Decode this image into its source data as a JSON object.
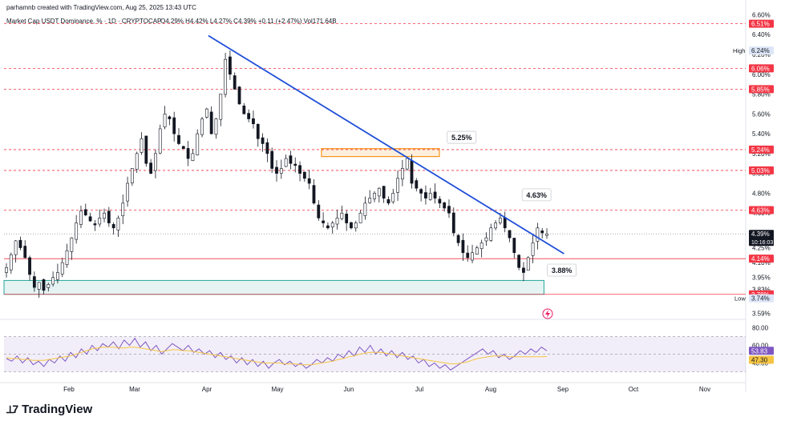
{
  "header": {
    "creator": "parhamnb created with TradingView.com, Aug 25, 2025 13:43 UTC",
    "symbol": "Market Cap USDT Dominance, % · 1D · CRYPTOCAP",
    "ohlc": "O4.29% H4.42% L4.27% C4.39% +0.11 (+2.47%) Vol171.64B"
  },
  "brand": {
    "name": "TradingView"
  },
  "colors": {
    "bull": "#ffffff",
    "bear": "#131722",
    "trend": "#1f4fd8",
    "red_level": "#f23645",
    "green_zone": "#26a69a",
    "orange_zone": "#f7931a",
    "rsi_line": "#7e57c2",
    "rsi_ma": "#f5c542"
  },
  "chart_data": [
    {
      "type": "candlestick",
      "x_ticks": [
        "Feb",
        "Mar",
        "Apr",
        "May",
        "Jun",
        "Jul",
        "Aug",
        "Sep",
        "Oct",
        "Nov"
      ],
      "y_ticks": [
        "6.60%",
        "6.40%",
        "6.20%",
        "6.00%",
        "5.80%",
        "5.60%",
        "5.40%",
        "5.20%",
        "5.00%",
        "4.80%",
        "4.60%",
        "4.40%",
        "4.25%",
        "4.10%",
        "3.95%",
        "3.83%",
        "3.74%",
        "3.59%"
      ],
      "ylim": [
        3.56,
        6.62
      ],
      "price_labels": [
        {
          "text": "6.51%",
          "value": 6.51,
          "kind": "red"
        },
        {
          "text": "6.24%",
          "value": 6.24,
          "kind": "high"
        },
        {
          "text": "6.06%",
          "value": 6.06,
          "kind": "red"
        },
        {
          "text": "5.85%",
          "value": 5.85,
          "kind": "red"
        },
        {
          "text": "5.24%",
          "value": 5.24,
          "kind": "red"
        },
        {
          "text": "5.03%",
          "value": 5.03,
          "kind": "red"
        },
        {
          "text": "4.63%",
          "value": 4.63,
          "kind": "red"
        },
        {
          "text": "4.39%",
          "value": 4.39,
          "kind": "current"
        },
        {
          "text": "4.14%",
          "value": 4.14,
          "kind": "red"
        },
        {
          "text": "3.78%",
          "value": 3.78,
          "kind": "red"
        }
      ],
      "current_sub": "10:16:03",
      "high_label": "High",
      "low_label": "Low",
      "low_value": 3.74,
      "dashed_levels": [
        6.51,
        6.06,
        5.85,
        5.24,
        5.03,
        4.63
      ],
      "solid_levels": [
        4.14,
        3.78
      ],
      "current_level": 4.39,
      "trendline": {
        "from": [
          0.2755,
          6.39
        ],
        "to": [
          0.755,
          4.19
        ]
      },
      "green_zone": {
        "x": [
          0.0,
          0.728
        ],
        "y": [
          3.78,
          3.92
        ]
      },
      "orange_zone": {
        "x": [
          0.428,
          0.587
        ],
        "y": [
          5.17,
          5.25
        ]
      },
      "callouts": [
        {
          "text": "5.25%",
          "x": 0.617,
          "y": 5.36
        },
        {
          "text": "4.63%",
          "x": 0.718,
          "y": 4.78
        },
        {
          "text": "3.88%",
          "x": 0.752,
          "y": 4.02
        }
      ],
      "series_close": [
        4.05,
        4.18,
        4.32,
        4.25,
        4.15,
        3.98,
        3.85,
        3.9,
        3.82,
        3.88,
        3.95,
        4.0,
        4.1,
        4.22,
        4.35,
        4.5,
        4.62,
        4.58,
        4.52,
        4.48,
        4.55,
        4.6,
        4.5,
        4.45,
        4.55,
        4.7,
        4.9,
        5.05,
        5.2,
        5.35,
        5.1,
        5.0,
        5.2,
        5.45,
        5.6,
        5.55,
        5.4,
        5.3,
        5.25,
        5.15,
        5.2,
        5.4,
        5.55,
        5.65,
        5.4,
        5.55,
        5.8,
        6.15,
        6.0,
        5.85,
        5.7,
        5.6,
        5.55,
        5.5,
        5.35,
        5.3,
        5.2,
        5.05,
        5.0,
        5.05,
        5.15,
        5.1,
        5.08,
        5.0,
        4.95,
        4.9,
        4.7,
        4.55,
        4.5,
        4.45,
        4.5,
        4.55,
        4.6,
        4.5,
        4.45,
        4.5,
        4.6,
        4.7,
        4.75,
        4.8,
        4.85,
        4.75,
        4.7,
        4.8,
        4.95,
        5.05,
        5.15,
        4.9,
        4.85,
        4.8,
        4.75,
        4.8,
        4.75,
        4.7,
        4.65,
        4.6,
        4.4,
        4.3,
        4.2,
        4.15,
        4.2,
        4.25,
        4.3,
        4.35,
        4.45,
        4.5,
        4.55,
        4.45,
        4.35,
        4.2,
        4.05,
        4.0,
        4.15,
        4.3,
        4.45,
        4.4,
        4.39
      ],
      "rsi": {
        "ticks": [
          "80.00",
          "60.00",
          "40.00"
        ],
        "ylim": [
          25,
          85
        ],
        "levels": [
          70,
          50,
          30
        ],
        "value_label": "53.83",
        "ma_label": "47.30",
        "line": [
          45,
          42,
          48,
          40,
          46,
          38,
          42,
          36,
          44,
          40,
          48,
          42,
          52,
          46,
          56,
          50,
          60,
          54,
          62,
          58,
          64,
          56,
          66,
          60,
          68,
          58,
          64,
          54,
          60,
          50,
          56,
          62,
          58,
          54,
          60,
          52,
          56,
          50,
          54,
          46,
          52,
          44,
          48,
          40,
          46,
          38,
          44,
          36,
          42,
          34,
          40,
          44,
          38,
          42,
          36,
          40,
          34,
          38,
          44,
          40,
          46,
          42,
          50,
          46,
          54,
          48,
          58,
          52,
          60,
          50,
          56,
          48,
          54,
          46,
          52,
          44,
          48,
          40,
          44,
          36,
          40,
          34,
          38,
          32,
          36,
          40,
          44,
          48,
          52,
          56,
          50,
          54,
          46,
          50,
          44,
          48,
          54,
          50,
          56,
          52,
          58,
          53.83
        ],
        "ma": [
          46,
          45,
          45,
          44,
          44,
          43,
          43,
          43,
          44,
          45,
          46,
          47,
          48,
          50,
          52,
          54,
          56,
          57,
          58,
          58,
          58,
          57,
          57,
          58,
          58,
          57,
          56,
          55,
          54,
          53,
          54,
          55,
          55,
          54,
          54,
          53,
          52,
          51,
          50,
          49,
          48,
          47,
          46,
          45,
          44,
          43,
          42,
          41,
          40,
          40,
          40,
          40,
          39,
          39,
          39,
          38,
          38,
          38,
          39,
          40,
          41,
          42,
          44,
          45,
          47,
          48,
          50,
          51,
          52,
          52,
          52,
          51,
          50,
          49,
          48,
          47,
          46,
          45,
          44,
          43,
          42,
          41,
          40,
          39,
          39,
          40,
          41,
          43,
          45,
          46,
          47,
          48,
          48,
          48,
          47,
          47,
          47,
          47,
          47,
          47,
          47,
          47.3
        ]
      }
    }
  ]
}
